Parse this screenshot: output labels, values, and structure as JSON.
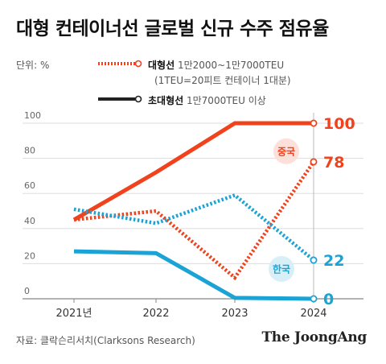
{
  "title": "대형 컨테이너선 글로벌 신규 수주 점유율",
  "unit_label": "단위: %",
  "legend": [
    {
      "name": "대형선",
      "desc": "1만2000~1만7000TEU",
      "desc2": "(1TEU=20피트 컨테이너 1대분)",
      "style": "dotted"
    },
    {
      "name": "초대형선",
      "desc": "1만7000TEU 이상",
      "style": "solid"
    }
  ],
  "source": "자료: 클락슨리서치(Clarksons Research)",
  "brand": "The JoongAng",
  "colors": {
    "china": "#f0421c",
    "korea": "#1ba3d6",
    "grid": "#dddddd",
    "axis": "#888888"
  },
  "chart_data": {
    "type": "line",
    "x": [
      "2021년",
      "2022",
      "2023",
      "2024"
    ],
    "ylim": [
      0,
      100
    ],
    "yticks": [
      0,
      20,
      40,
      60,
      80,
      100
    ],
    "grid": true,
    "series": [
      {
        "name": "중국",
        "style": "solid",
        "color": "#f0421c",
        "values": [
          45,
          72,
          100,
          100
        ]
      },
      {
        "name": "중국",
        "style": "dotted",
        "color": "#f0421c",
        "values": [
          45,
          50,
          12,
          78
        ]
      },
      {
        "name": "한국",
        "style": "dotted",
        "color": "#1ba3d6",
        "values": [
          51,
          43,
          59,
          22
        ]
      },
      {
        "name": "한국",
        "style": "solid",
        "color": "#1ba3d6",
        "values": [
          27,
          26,
          0.5,
          0
        ]
      }
    ],
    "end_labels": [
      {
        "text": "100",
        "color": "#f0421c",
        "value": 100
      },
      {
        "text": "78",
        "color": "#f0421c",
        "value": 78
      },
      {
        "text": "22",
        "color": "#1ba3d6",
        "value": 22
      },
      {
        "text": "0",
        "color": "#1ba3d6",
        "value": 0
      }
    ],
    "badges": [
      {
        "text": "중국",
        "color": "#f0421c",
        "bg": "#fde0da"
      },
      {
        "text": "한국",
        "color": "#1ba3d6",
        "bg": "#d8eff8"
      }
    ]
  }
}
